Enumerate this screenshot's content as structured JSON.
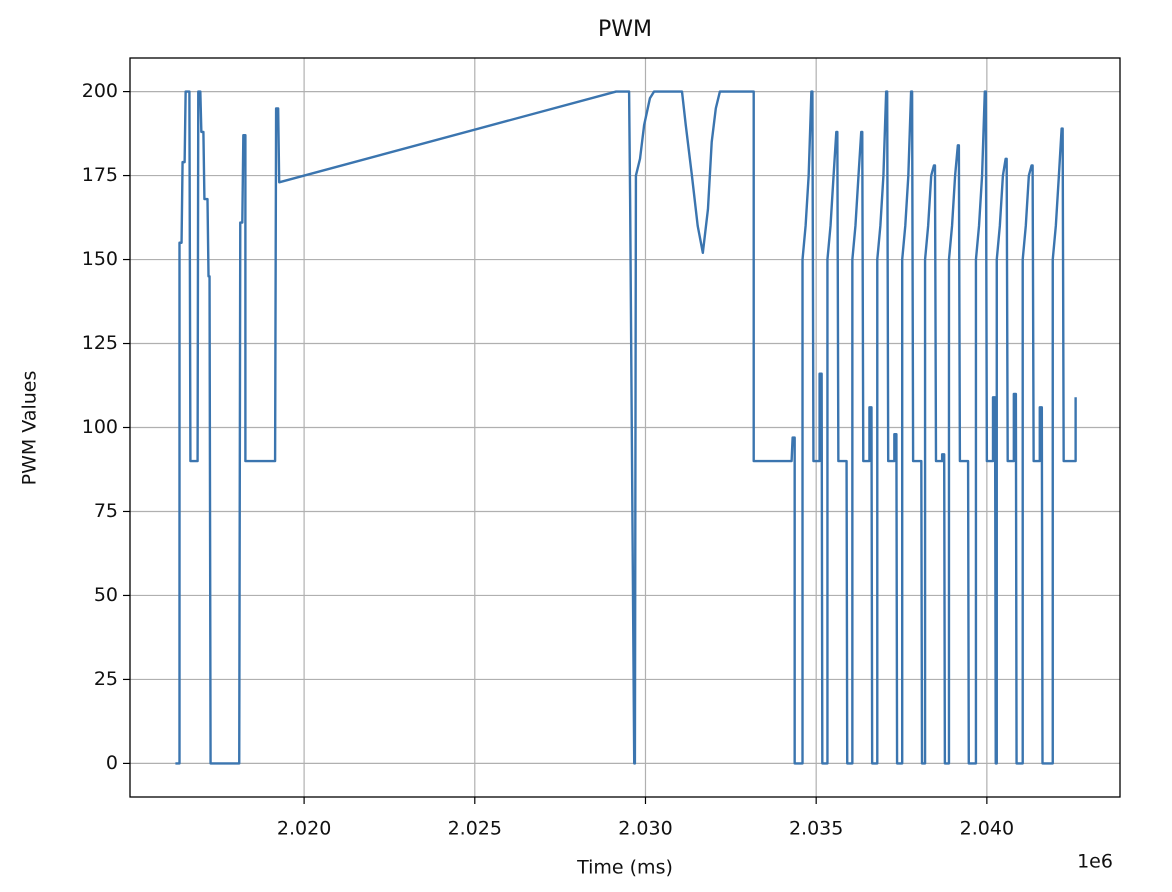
{
  "chart_data": {
    "type": "line",
    "title": "PWM",
    "x_label": "Time (ms)",
    "y_label": "PWM Values",
    "x_offset_label": "1e6",
    "color": "#3b75af",
    "grid": true,
    "xlim": [
      2014900,
      2043900
    ],
    "ylim": [
      -10,
      210
    ],
    "xticks": [
      {
        "value": 2020000,
        "label": "2.020"
      },
      {
        "value": 2025000,
        "label": "2.025"
      },
      {
        "value": 2030000,
        "label": "2.030"
      },
      {
        "value": 2035000,
        "label": "2.035"
      },
      {
        "value": 2040000,
        "label": "2.040"
      }
    ],
    "yticks": [
      0,
      25,
      50,
      75,
      100,
      125,
      150,
      175,
      200
    ],
    "x": [
      2016230,
      2016350,
      2016350,
      2016410,
      2016440,
      2016500,
      2016530,
      2016640,
      2016670,
      2016880,
      2016900,
      2016960,
      2016990,
      2017050,
      2017080,
      2017170,
      2017200,
      2017230,
      2017260,
      2018100,
      2018130,
      2018190,
      2018220,
      2018280,
      2018280,
      2019150,
      2019180,
      2019240,
      2019270,
      2029140,
      2029520,
      2029550,
      2029670,
      2029690,
      2029720,
      2029840,
      2029960,
      2030130,
      2030250,
      2031070,
      2031180,
      2031360,
      2031530,
      2031680,
      2031830,
      2031940,
      2032060,
      2032180,
      2033170,
      2033170,
      2034280,
      2034310,
      2034370,
      2034370,
      2034600,
      2034600,
      2034690,
      2034780,
      2034860,
      2034890,
      2034920,
      2035100,
      2035100,
      2035160,
      2035180,
      2035330,
      2035330,
      2035420,
      2035510,
      2035590,
      2035620,
      2035650,
      2035830,
      2035830,
      2035890,
      2035910,
      2036060,
      2036060,
      2036150,
      2036240,
      2036320,
      2036350,
      2036380,
      2036560,
      2036560,
      2036620,
      2036640,
      2036790,
      2036790,
      2036880,
      2036970,
      2037050,
      2037080,
      2037110,
      2037290,
      2037290,
      2037350,
      2037370,
      2037520,
      2037520,
      2037610,
      2037700,
      2037780,
      2037810,
      2037840,
      2038020,
      2038020,
      2038080,
      2038100,
      2038190,
      2038190,
      2038280,
      2038370,
      2038450,
      2038480,
      2038510,
      2038690,
      2038690,
      2038750,
      2038770,
      2038890,
      2038890,
      2038980,
      2039070,
      2039150,
      2039180,
      2039210,
      2039390,
      2039390,
      2039450,
      2039470,
      2039680,
      2039680,
      2039770,
      2039860,
      2039940,
      2039970,
      2040000,
      2040180,
      2040180,
      2040240,
      2040260,
      2040290,
      2040290,
      2040380,
      2040470,
      2040550,
      2040580,
      2040610,
      2040790,
      2040790,
      2040850,
      2040870,
      2041050,
      2041050,
      2041140,
      2041230,
      2041310,
      2041340,
      2041370,
      2041550,
      2041550,
      2041610,
      2041630,
      2041930,
      2041930,
      2042020,
      2042110,
      2042190,
      2042220,
      2042250,
      2042600,
      2042600
    ],
    "values": [
      0,
      0,
      155,
      155,
      179,
      179,
      200,
      200,
      90,
      90,
      200,
      200,
      188,
      188,
      168,
      168,
      145,
      145,
      0,
      0,
      161,
      161,
      187,
      187,
      90,
      90,
      195,
      195,
      173,
      200,
      200,
      168,
      0,
      0,
      175,
      180,
      190,
      198,
      200,
      200,
      190,
      175,
      160,
      152,
      165,
      185,
      195,
      200,
      200,
      90,
      90,
      97,
      97,
      0,
      0,
      150,
      160,
      175,
      200,
      200,
      90,
      90,
      116,
      116,
      0,
      0,
      150,
      160,
      175,
      188,
      188,
      90,
      90,
      90,
      90,
      0,
      0,
      150,
      160,
      175,
      188,
      188,
      90,
      90,
      106,
      106,
      0,
      0,
      150,
      160,
      175,
      200,
      200,
      90,
      90,
      98,
      98,
      0,
      0,
      150,
      160,
      175,
      200,
      200,
      90,
      90,
      90,
      90,
      0,
      0,
      150,
      160,
      175,
      178,
      178,
      90,
      90,
      92,
      92,
      0,
      0,
      150,
      160,
      175,
      184,
      184,
      90,
      90,
      90,
      90,
      0,
      0,
      150,
      160,
      175,
      200,
      200,
      90,
      90,
      109,
      109,
      0,
      0,
      150,
      160,
      175,
      180,
      180,
      90,
      90,
      110,
      110,
      0,
      0,
      150,
      160,
      175,
      178,
      178,
      90,
      90,
      106,
      106,
      0,
      0,
      150,
      160,
      175,
      189,
      189,
      90,
      90,
      109
    ]
  }
}
